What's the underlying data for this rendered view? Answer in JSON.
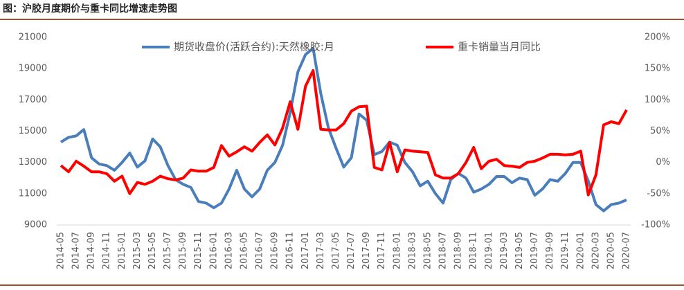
{
  "chart_data": {
    "type": "line",
    "title": "图：沪胶月度期价与重卡同比增速走势图",
    "categories": [
      "2014-05",
      null,
      "2014-07",
      null,
      "2014-09",
      null,
      "2014-11",
      null,
      "2015-01",
      null,
      "2015-03",
      null,
      "2015-05",
      null,
      "2015-07",
      null,
      "2015-09",
      null,
      "2015-11",
      null,
      "2016-01",
      null,
      "2016-03",
      null,
      "2016-05",
      null,
      "2016-07",
      null,
      "2016-09",
      null,
      "2016-11",
      null,
      "2017-01",
      null,
      "2017-03",
      null,
      "2017-05",
      null,
      "2017-07",
      null,
      "2017-09",
      null,
      "2017-11",
      null,
      "2018-01",
      null,
      "2018-03",
      null,
      "2018-05",
      null,
      "2018-07",
      null,
      "2018-09",
      null,
      "2018-11",
      null,
      "2019-01",
      null,
      "2019-03",
      null,
      "2019-05",
      null,
      "2019-07",
      null,
      "2019-09",
      null,
      "2019-11",
      null,
      "2020-01",
      null,
      "2020-03",
      null,
      "2020-05",
      null,
      "2020-07"
    ],
    "series": [
      {
        "name": "期货收盘价(活跃合约):天然橡胶:月",
        "color": "#4a7ebb",
        "axis": "y",
        "values": [
          14300,
          14600,
          14700,
          15100,
          13300,
          12900,
          12800,
          12500,
          13000,
          13600,
          12700,
          13100,
          14500,
          14000,
          12800,
          11900,
          11600,
          11400,
          10500,
          10400,
          10100,
          10400,
          11300,
          12500,
          11300,
          10800,
          11300,
          12500,
          13000,
          14100,
          16200,
          18800,
          19900,
          20300,
          17400,
          15200,
          13900,
          12700,
          13300,
          16100,
          15700,
          13500,
          13700,
          14300,
          14100,
          13000,
          12400,
          11500,
          11800,
          11000,
          10400,
          11900,
          12300,
          12000,
          11100,
          11300,
          11600,
          12100,
          12100,
          11700,
          12000,
          11900,
          10900,
          11300,
          11900,
          11800,
          12300,
          13000,
          13000,
          11800,
          10300,
          9900,
          10300,
          10400,
          10600
        ]
      },
      {
        "name": "重卡销量当月同比",
        "color": "#ff0000",
        "axis": "y2",
        "values": [
          -5,
          -15,
          2,
          -6,
          -15,
          -15,
          -18,
          -30,
          -22,
          -50,
          -32,
          -35,
          -30,
          -22,
          -26,
          -28,
          -25,
          -12,
          -14,
          -14,
          -8,
          27,
          10,
          17,
          25,
          18,
          32,
          44,
          28,
          55,
          97,
          53,
          122,
          147,
          53,
          52,
          52,
          62,
          82,
          89,
          90,
          -8,
          -12,
          32,
          -15,
          20,
          18,
          17,
          16,
          -20,
          -25,
          -25,
          -18,
          0,
          24,
          -10,
          2,
          5,
          -5,
          -6,
          -8,
          0,
          2,
          7,
          13,
          13,
          12,
          13,
          18,
          -52,
          -20,
          60,
          65,
          62,
          84
        ]
      }
    ],
    "ylim": [
      9000,
      21000
    ],
    "yticks": [
      9000,
      11000,
      13000,
      15000,
      17000,
      19000,
      21000
    ],
    "y2lim": [
      -100,
      200
    ],
    "y2ticks": [
      {
        "value": -100,
        "label": "-100%"
      },
      {
        "value": -50,
        "label": "-50%"
      },
      {
        "value": 0,
        "label": "0%"
      },
      {
        "value": 50,
        "label": "50%"
      },
      {
        "value": 100,
        "label": "100%"
      },
      {
        "value": 150,
        "label": "150%"
      },
      {
        "value": 200,
        "label": "200%"
      }
    ],
    "grid": false
  }
}
